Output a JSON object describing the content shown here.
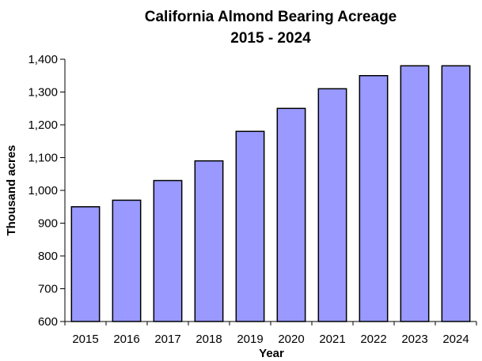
{
  "chart_data": {
    "type": "bar",
    "title": "California Almond Bearing Acreage",
    "subtitle": "2015 - 2024",
    "xlabel": "Year",
    "ylabel": "Thousand acres",
    "categories": [
      "2015",
      "2016",
      "2017",
      "2018",
      "2019",
      "2020",
      "2021",
      "2022",
      "2023",
      "2024"
    ],
    "values": [
      950,
      970,
      1030,
      1090,
      1180,
      1250,
      1310,
      1350,
      1380,
      1380
    ],
    "ylim": [
      600,
      1400
    ],
    "yticks": [
      600,
      700,
      800,
      900,
      1000,
      1100,
      1200,
      1300,
      1400
    ],
    "ytick_labels": [
      "600",
      "700",
      "800",
      "900",
      "1,000",
      "1,100",
      "1,200",
      "1,300",
      "1,400"
    ],
    "grid": false,
    "legend": "none",
    "bar_color": "#9999ff",
    "bar_edge_color": "#000000"
  }
}
